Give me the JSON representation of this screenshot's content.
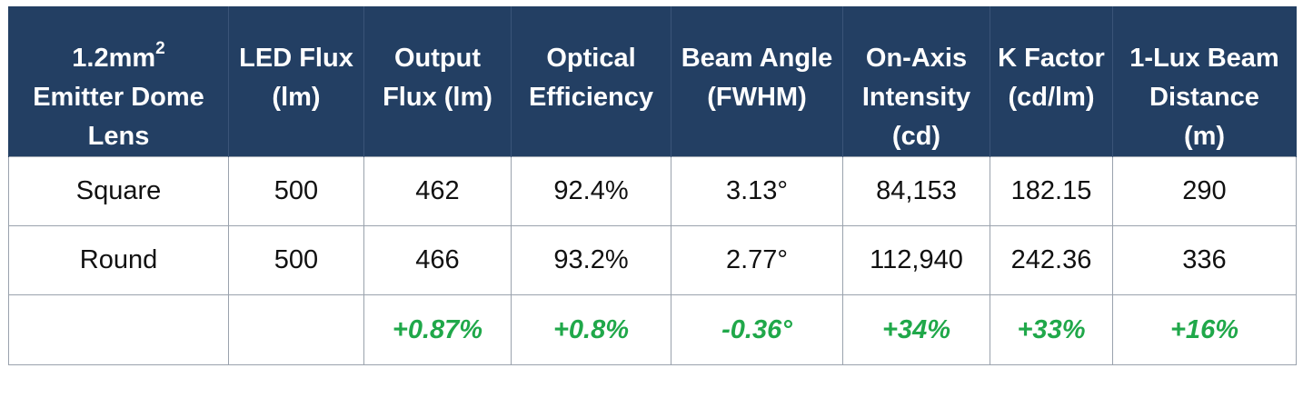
{
  "table": {
    "headers": [
      {
        "lines": [
          "1.2mm",
          "Emitter Dome",
          "Lens"
        ],
        "sup": "2"
      },
      {
        "lines": [
          "LED Flux",
          "(lm)"
        ]
      },
      {
        "lines": [
          "Output",
          "Flux (lm)"
        ]
      },
      {
        "lines": [
          "Optical",
          "Efficiency"
        ]
      },
      {
        "lines": [
          "Beam Angle",
          "(FWHM)"
        ]
      },
      {
        "lines": [
          "On-Axis",
          "Intensity",
          "(cd)"
        ]
      },
      {
        "lines": [
          "K Factor",
          "(cd/lm)"
        ]
      },
      {
        "lines": [
          "1-Lux Beam",
          "Distance",
          "(m)"
        ]
      }
    ],
    "rows": [
      [
        "Square",
        "500",
        "462",
        "92.4%",
        "3.13°",
        "84,153",
        "182.15",
        "290"
      ],
      [
        "Round",
        "500",
        "466",
        "93.2%",
        "2.77°",
        "112,940",
        "242.36",
        "336"
      ],
      [
        "",
        "",
        "+0.87%",
        "+0.8%",
        "-0.36°",
        "+34%",
        "+33%",
        "+16%"
      ]
    ]
  },
  "colors": {
    "header_bg": "#233f63",
    "header_text": "#ffffff",
    "delta_text": "#20a84a",
    "border": "#9aa2ad"
  }
}
